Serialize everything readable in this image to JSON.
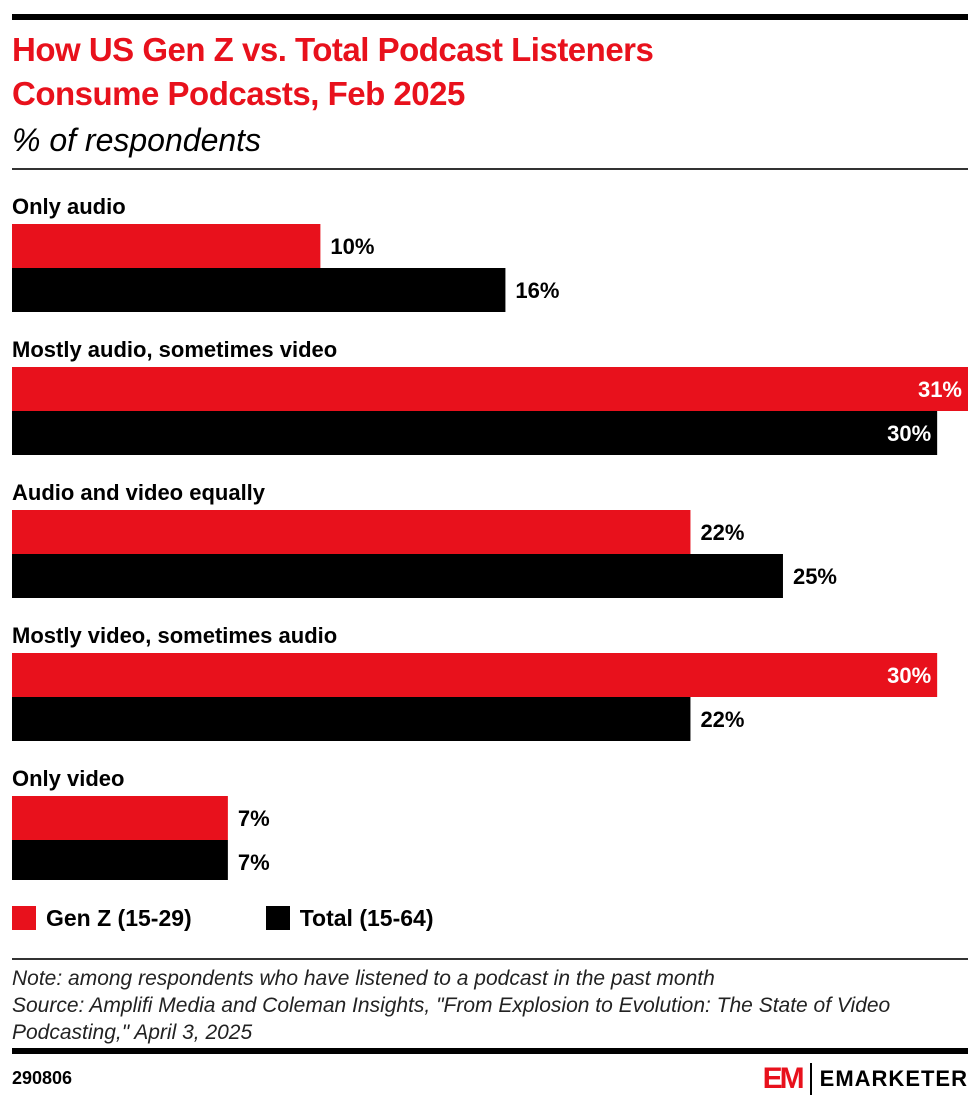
{
  "header": {
    "title_line1": "How US Gen Z vs. Total Podcast Listeners",
    "title_line2": "Consume Podcasts, Feb 2025",
    "subtitle": "% of respondents"
  },
  "chart_data": {
    "type": "bar",
    "orientation": "horizontal",
    "title": "How US Gen Z vs. Total Podcast Listeners Consume Podcasts, Feb 2025",
    "subtitle": "% of respondents",
    "categories": [
      "Only audio",
      "Mostly audio, sometimes video",
      "Audio and video equally",
      "Mostly video, sometimes audio",
      "Only video"
    ],
    "series": [
      {
        "name": "Gen Z (15-29)",
        "color": "#e8111c",
        "values": [
          10,
          31,
          22,
          30,
          7
        ]
      },
      {
        "name": "Total (15-64)",
        "color": "#000000",
        "values": [
          16,
          30,
          25,
          22,
          7
        ]
      }
    ],
    "unit": "%",
    "xlim": [
      0,
      31
    ],
    "grid": false,
    "legend_position": "bottom-left"
  },
  "legend": {
    "items": [
      {
        "label": "Gen Z (15-29)",
        "color": "#e8111c"
      },
      {
        "label": "Total (15-64)",
        "color": "#000000"
      }
    ]
  },
  "footer": {
    "note": "Note: among respondents who have listened to a podcast in the past month",
    "source": "Source: Amplifi Media and Coleman Insights, \"From Explosion to Evolution: The State of Video Podcasting,\" April 3, 2025",
    "chart_id": "290806",
    "brand_mark": "EM",
    "brand_name": "EMARKETER"
  }
}
